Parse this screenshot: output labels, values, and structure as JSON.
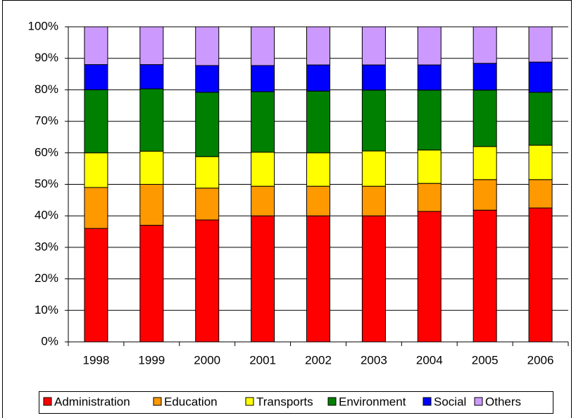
{
  "chart_data": {
    "type": "stacked_bar",
    "categories": [
      "1998",
      "1999",
      "2000",
      "2001",
      "2002",
      "2003",
      "2004",
      "2005",
      "2006"
    ],
    "series": [
      {
        "name": "Administration",
        "color": "#ff0000",
        "values": [
          36,
          37,
          38.7,
          40,
          40,
          40,
          41.4,
          41.8,
          42.5
        ]
      },
      {
        "name": "Education",
        "color": "#ff9900",
        "values": [
          13,
          13,
          10.1,
          9.4,
          9.4,
          9.4,
          8.9,
          9.7,
          9
        ]
      },
      {
        "name": "Transports",
        "color": "#ffff00",
        "values": [
          11,
          10.5,
          10,
          10.8,
          10.6,
          11.2,
          10.6,
          10.5,
          10.9
        ]
      },
      {
        "name": "Environment",
        "color": "#008000",
        "values": [
          20,
          19.8,
          20.4,
          19.2,
          19.6,
          19.3,
          19,
          17.9,
          16.8
        ]
      },
      {
        "name": "Social",
        "color": "#0000ff",
        "values": [
          8,
          7.7,
          8.5,
          8.3,
          8.3,
          8,
          8,
          8.5,
          9.6
        ]
      },
      {
        "name": "Others",
        "color": "#cc99ff",
        "values": [
          12,
          12,
          12.3,
          12.3,
          12.1,
          12.1,
          12.1,
          11.6,
          11.2
        ]
      }
    ],
    "ylim": [
      0,
      100
    ],
    "yticks": [
      {
        "value": 0,
        "label": "0%"
      },
      {
        "value": 10,
        "label": "10%"
      },
      {
        "value": 20,
        "label": "20%"
      },
      {
        "value": 30,
        "label": "30%"
      },
      {
        "value": 40,
        "label": "40%"
      },
      {
        "value": 50,
        "label": "50%"
      },
      {
        "value": 60,
        "label": "60%"
      },
      {
        "value": 70,
        "label": "70%"
      },
      {
        "value": 80,
        "label": "80%"
      },
      {
        "value": 90,
        "label": "90%"
      },
      {
        "value": 100,
        "label": "100%"
      }
    ],
    "grid": true,
    "legend": "bottom"
  }
}
